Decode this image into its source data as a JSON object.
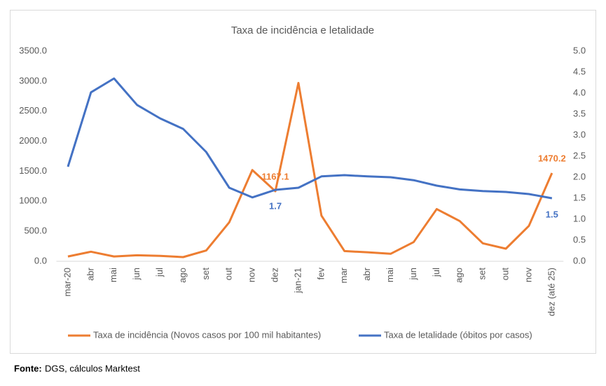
{
  "chart_data": {
    "type": "line",
    "title": "Taxa de incidência e letalidade",
    "categories": [
      "mar-20",
      "abr",
      "mai",
      "jun",
      "jul",
      "ago",
      "set",
      "out",
      "nov",
      "dez",
      "jan-21",
      "fev",
      "mar",
      "abr",
      "mai",
      "jun",
      "jul",
      "ago",
      "set",
      "out",
      "nov",
      "dez (até 25)"
    ],
    "series": [
      {
        "name": "Taxa de incidência (Novos casos por 100 mil habitantes)",
        "color": "#ed7d31",
        "values": [
          80,
          160,
          80,
          100,
          90,
          70,
          180,
          650,
          1520,
          1167.1,
          2970,
          760,
          170,
          150,
          125,
          320,
          870,
          670,
          300,
          210,
          590,
          1470.2
        ],
        "value_labels": [
          null,
          null,
          null,
          null,
          null,
          null,
          null,
          null,
          null,
          "1167.1",
          null,
          null,
          null,
          null,
          null,
          null,
          null,
          null,
          null,
          null,
          null,
          "1470.2"
        ]
      },
      {
        "name": "Taxa de letalidade (óbitos por casos)",
        "color": "#4472c4",
        "axis": "y2",
        "values": [
          2.25,
          4.02,
          4.35,
          3.72,
          3.4,
          3.15,
          2.6,
          1.75,
          1.52,
          1.7,
          1.75,
          2.02,
          2.05,
          2.02,
          2.0,
          1.93,
          1.8,
          1.71,
          1.67,
          1.65,
          1.6,
          1.5
        ],
        "value_labels": [
          null,
          null,
          null,
          null,
          null,
          null,
          null,
          null,
          null,
          "1.7",
          null,
          null,
          null,
          null,
          null,
          null,
          null,
          null,
          null,
          null,
          null,
          "1.5"
        ]
      }
    ],
    "ylim": [
      0,
      3500
    ],
    "yticks": [
      {
        "value": 0,
        "label": "0.0"
      },
      {
        "value": 500,
        "label": "500.0"
      },
      {
        "value": 1000,
        "label": "1000.0"
      },
      {
        "value": 1500,
        "label": "1500.0"
      },
      {
        "value": 2000,
        "label": "2000.0"
      },
      {
        "value": 2500,
        "label": "2500.0"
      },
      {
        "value": 3000,
        "label": "3000.0"
      },
      {
        "value": 3500,
        "label": "3500.0"
      }
    ],
    "y2lim": [
      0,
      5
    ],
    "y2ticks": [
      {
        "value": 0,
        "label": "0.0"
      },
      {
        "value": 0.5,
        "label": "0.5"
      },
      {
        "value": 1,
        "label": "1.0"
      },
      {
        "value": 1.5,
        "label": "1.5"
      },
      {
        "value": 2,
        "label": "2.0"
      },
      {
        "value": 2.5,
        "label": "2.5"
      },
      {
        "value": 3,
        "label": "3.0"
      },
      {
        "value": 3.5,
        "label": "3.5"
      },
      {
        "value": 4,
        "label": "4.0"
      },
      {
        "value": 4.5,
        "label": "4.5"
      },
      {
        "value": 5,
        "label": "5.0"
      }
    ],
    "legend": "bottom",
    "grid": false
  },
  "footer": {
    "source_label": "Fonte:",
    "source": "DGS, cálculos Marktest"
  }
}
